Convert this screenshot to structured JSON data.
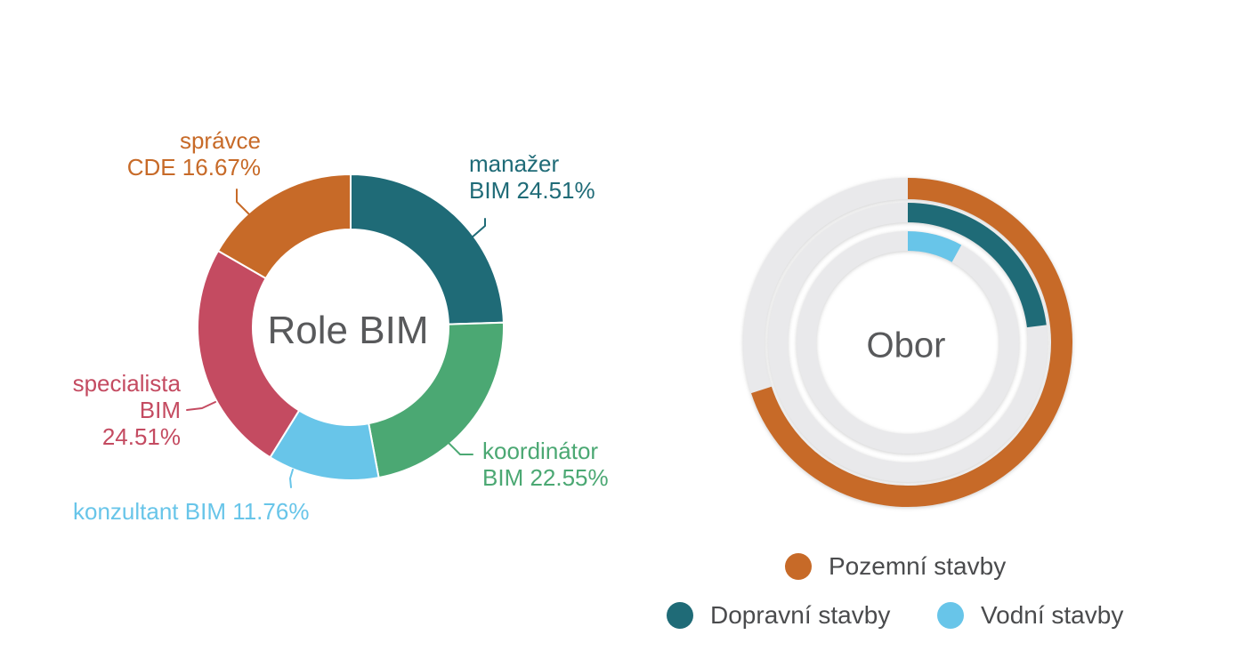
{
  "page": {
    "background": "#ffffff",
    "text_color": "#58595b"
  },
  "chart_data": [
    {
      "type": "donut",
      "title": "Role BIM",
      "unit": "%",
      "start_angle_deg": 0,
      "direction": "clockwise",
      "hole": true,
      "segments": [
        {
          "label": "manažer BIM",
          "value": 24.51,
          "color": "#1f6b77",
          "display_lines": [
            "manažer",
            "BIM 24.51%"
          ]
        },
        {
          "label": "koordinátor BIM",
          "value": 22.55,
          "color": "#4ba873",
          "display_lines": [
            "koordinátor",
            "BIM 22.55%"
          ]
        },
        {
          "label": "konzultant BIM",
          "value": 11.76,
          "color": "#68c5e9",
          "display_lines": [
            "konzultant BIM 11.76%"
          ]
        },
        {
          "label": "specialista BIM",
          "value": 24.51,
          "color": "#c44b61",
          "display_lines": [
            "specialista",
            "BIM",
            "24.51%"
          ]
        },
        {
          "label": "správce CDE",
          "value": 16.67,
          "color": "#c76a28",
          "display_lines": [
            "správce",
            "CDE 16.67%"
          ]
        }
      ]
    },
    {
      "type": "concentric-rings",
      "title": "Obor",
      "unit": "%",
      "start_angle_deg": 0,
      "direction": "clockwise",
      "track_color": "#e9e9eb",
      "rings": [
        {
          "label": "Pozemní stavby",
          "value_pct_estimated": 70,
          "color": "#c76a28"
        },
        {
          "label": "Dopravní stavby",
          "value_pct_estimated": 23,
          "color": "#1f6b77"
        },
        {
          "label": "Vodní stavby",
          "value_pct_estimated": 8,
          "color": "#68c5e9"
        }
      ],
      "legend": [
        "Pozemní stavby",
        "Dopravní stavby",
        "Vodní stavby"
      ],
      "legend_position": "bottom"
    }
  ]
}
